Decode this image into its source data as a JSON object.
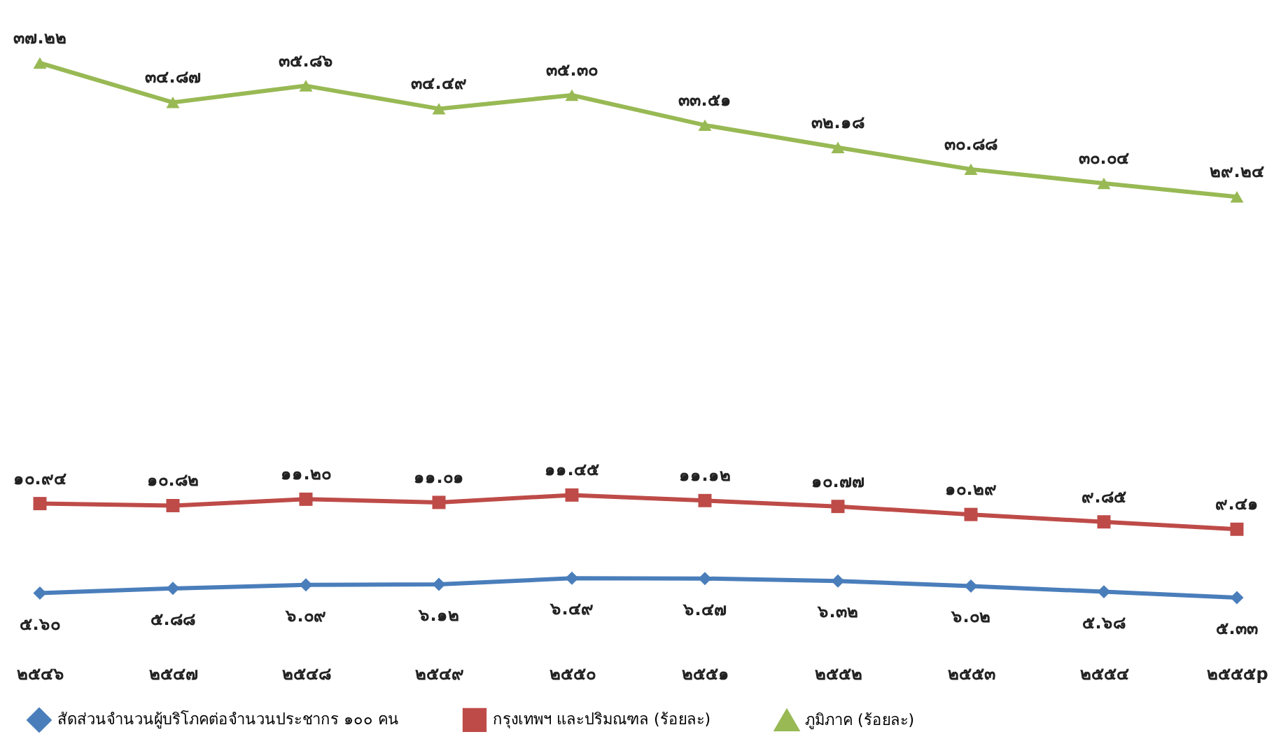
{
  "chart_data": {
    "type": "line",
    "categories": [
      "๒๕๔๖",
      "๒๕๔๗",
      "๒๕๔๘",
      "๒๕๔๙",
      "๒๕๕๐",
      "๒๕๕๑",
      "๒๕๕๒",
      "๒๕๕๓",
      "๒๕๕๔",
      "๒๕๕๕p"
    ],
    "series": [
      {
        "name": "สัดส่วนจำนวนผู้บริโภคต่อจำนวนประชากร ๑๐๐ คน",
        "color": "#4a7ebb",
        "marker": "diamond",
        "values": [
          5.6,
          5.88,
          6.09,
          6.12,
          6.49,
          6.47,
          6.32,
          6.02,
          5.68,
          5.33
        ],
        "value_labels": [
          "๕.๖๐",
          "๕.๘๘",
          "๖.๐๙",
          "๖.๑๒",
          "๖.๔๙",
          "๖.๔๗",
          "๖.๓๒",
          "๖.๐๒",
          "๕.๖๘",
          "๕.๓๓"
        ]
      },
      {
        "name": "กรุงเทพฯ และปริมณฑล (ร้อยละ)",
        "color": "#be4b48",
        "marker": "square",
        "values": [
          10.94,
          10.82,
          11.2,
          11.01,
          11.45,
          11.12,
          10.77,
          10.29,
          9.85,
          9.41
        ],
        "value_labels": [
          "๑๐.๙๔",
          "๑๐.๘๒",
          "๑๑.๒๐",
          "๑๑.๐๑",
          "๑๑.๔๕",
          "๑๑.๑๒",
          "๑๐.๗๗",
          "๑๐.๒๙",
          "๙.๘๕",
          "๙.๔๑"
        ]
      },
      {
        "name": "ภูมิภาค (ร้อยละ)",
        "color": "#98b954",
        "marker": "triangle",
        "values": [
          37.22,
          34.87,
          35.86,
          34.49,
          35.3,
          33.51,
          32.18,
          30.88,
          30.04,
          29.24
        ],
        "value_labels": [
          "๓๗.๒๒",
          "๓๔.๘๗",
          "๓๕.๘๖",
          "๓๔.๔๙",
          "๓๕.๓๐",
          "๓๓.๕๑",
          "๓๒.๑๘",
          "๓๐.๘๘",
          "๓๐.๐๔",
          "๒๙.๒๔"
        ]
      }
    ],
    "tick_labels": "x",
    "grid": false,
    "legend": "bottom",
    "line_style": "solid"
  }
}
